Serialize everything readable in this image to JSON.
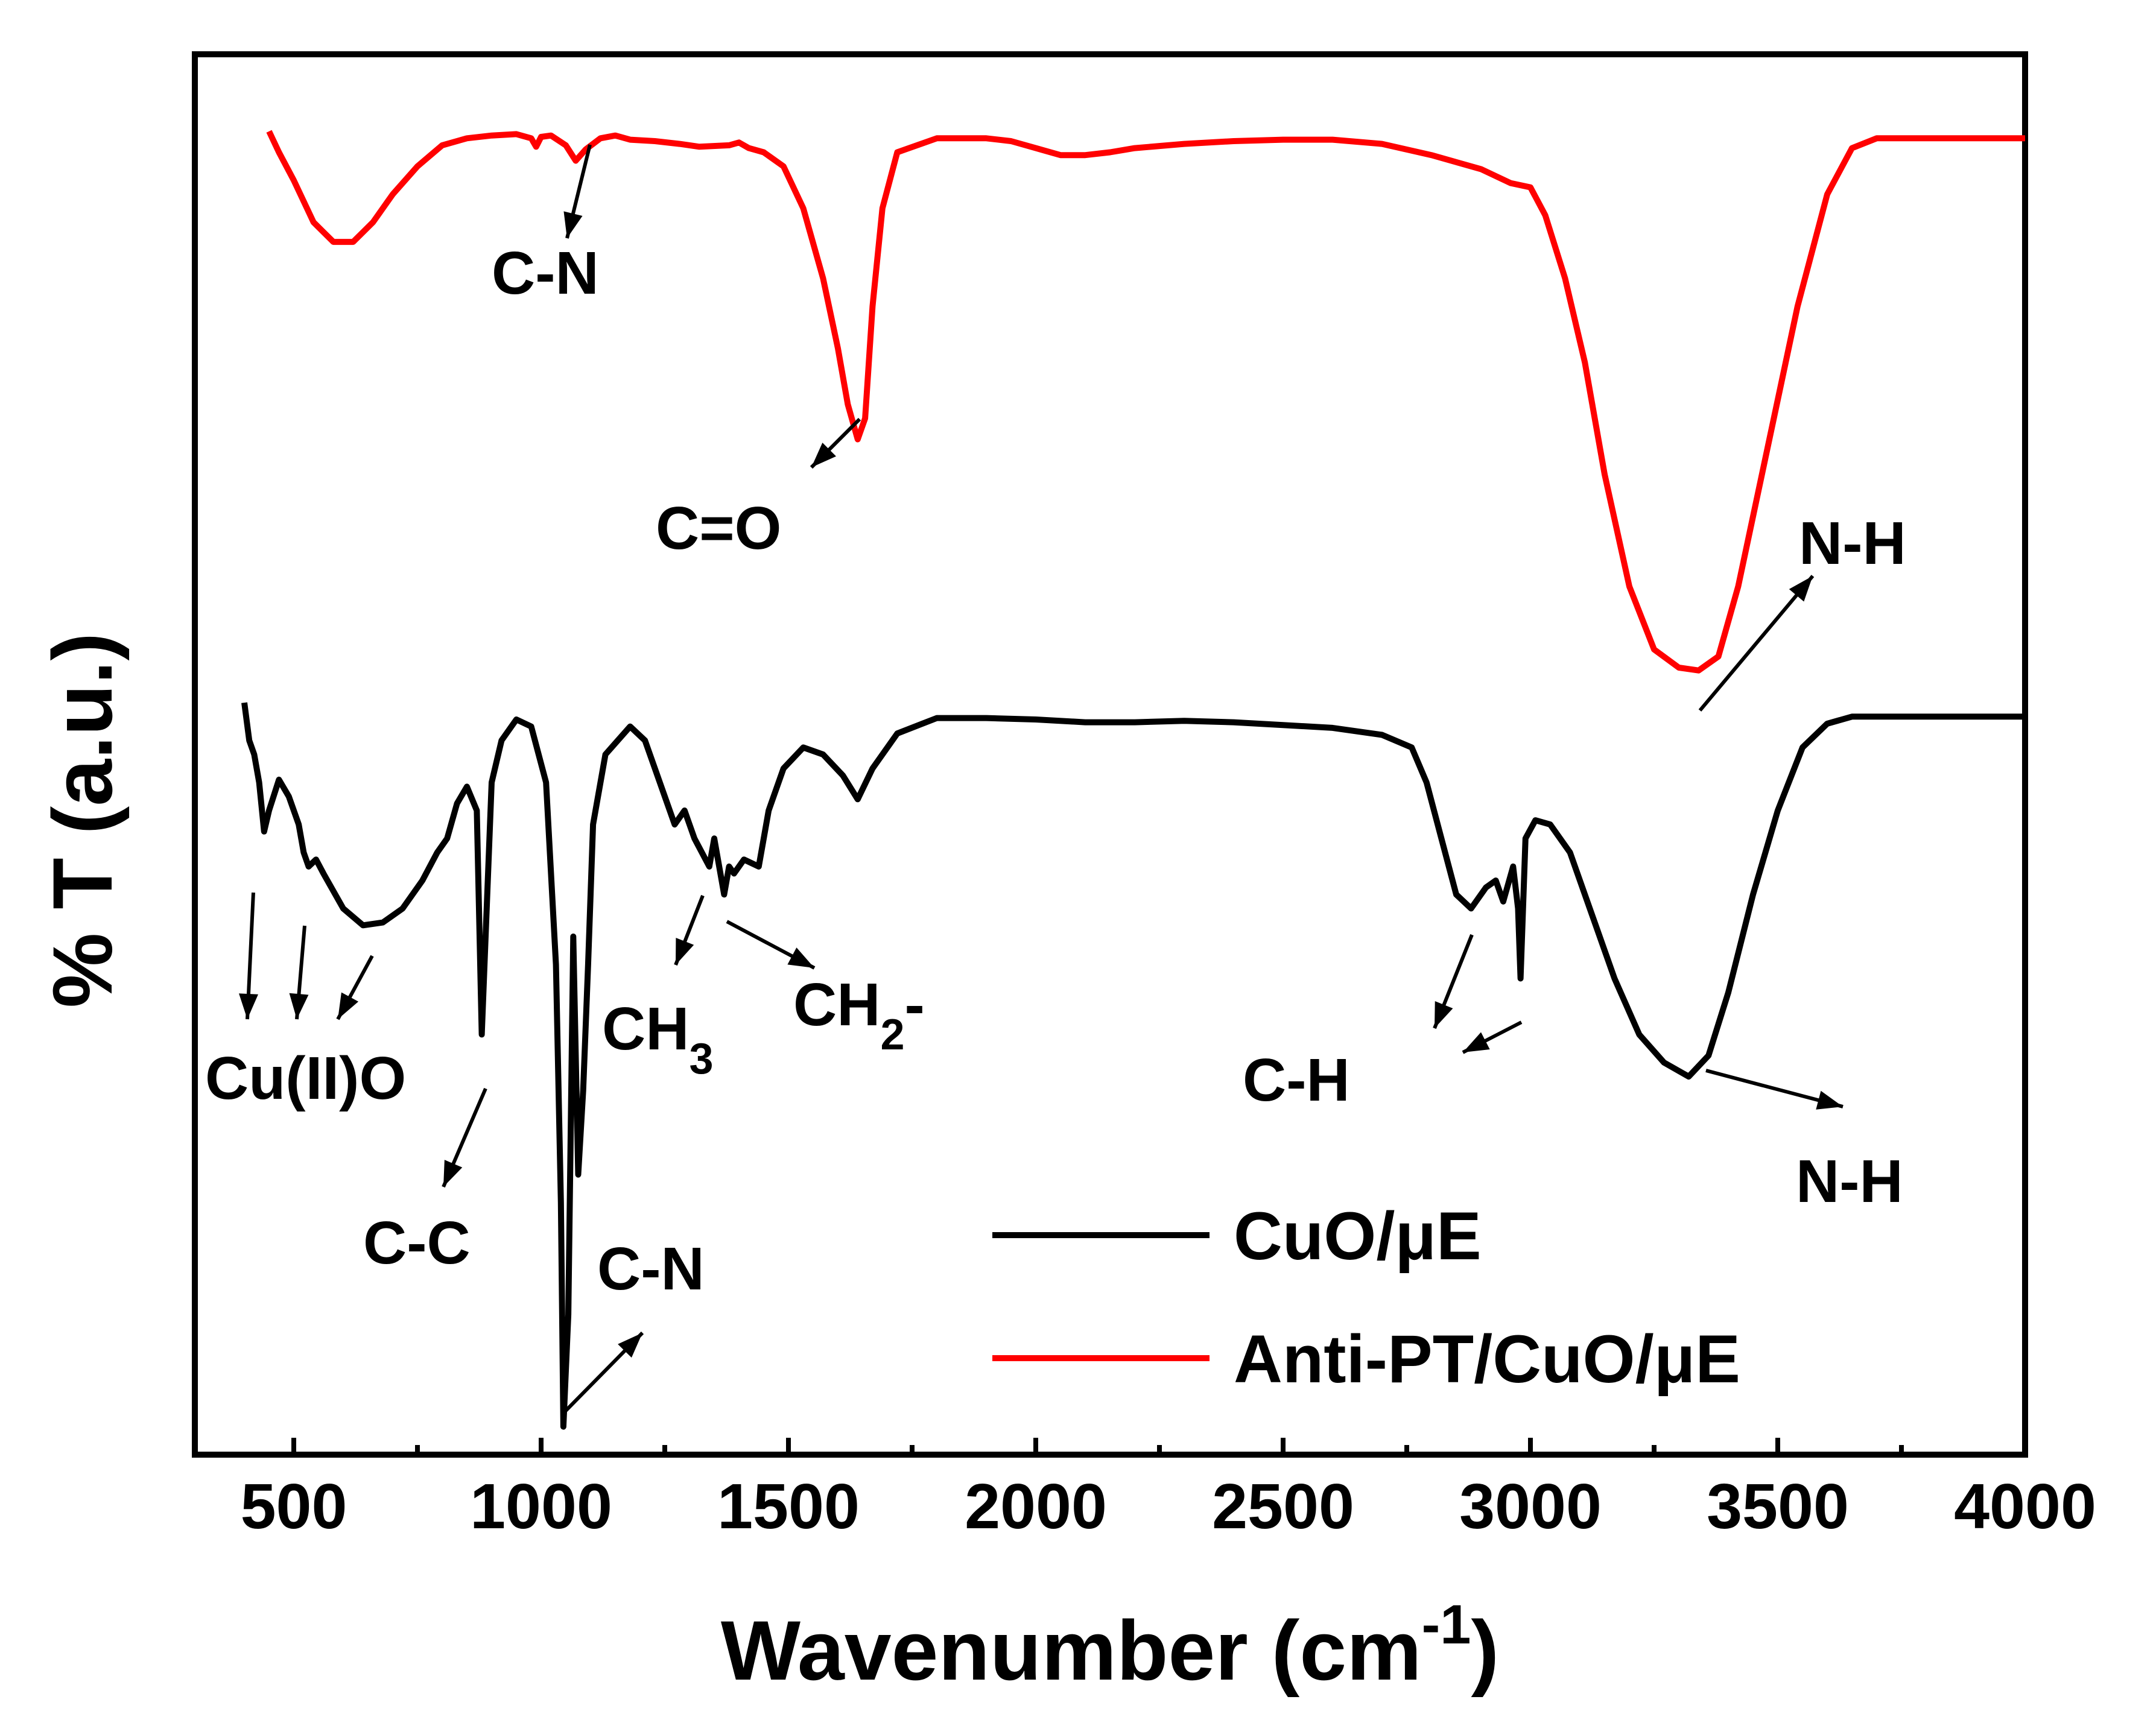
{
  "chart_data": {
    "type": "line",
    "xlabel": "Wavenumber (cm",
    "xlabel_sup": "-1",
    "xlabel_end": ")",
    "ylabel": "% T (a.u.)",
    "xlim": [
      300,
      4000
    ],
    "xticks": [
      500,
      1000,
      1500,
      2000,
      2500,
      3000,
      3500,
      4000
    ],
    "xtick_labels": [
      "500",
      "1000",
      "1500",
      "2000",
      "2500",
      "3000",
      "3500",
      "4000"
    ],
    "yticks_shown": false,
    "ylim": [
      0,
      100
    ],
    "legend_position": "bottom-right",
    "series": [
      {
        "name": "CuO/μE",
        "color": "#000000",
        "points": [
          [
            400,
            53.7
          ],
          [
            410,
            51.0
          ],
          [
            420,
            50.0
          ],
          [
            430,
            48.0
          ],
          [
            440,
            44.5
          ],
          [
            450,
            46.0
          ],
          [
            470,
            48.2
          ],
          [
            490,
            47.0
          ],
          [
            510,
            45.0
          ],
          [
            520,
            43.0
          ],
          [
            530,
            42.0
          ],
          [
            545,
            42.5
          ],
          [
            560,
            41.5
          ],
          [
            600,
            39.0
          ],
          [
            640,
            37.8
          ],
          [
            680,
            38.0
          ],
          [
            720,
            39.0
          ],
          [
            760,
            41.0
          ],
          [
            790,
            43.0
          ],
          [
            810,
            44.0
          ],
          [
            830,
            46.5
          ],
          [
            850,
            47.7
          ],
          [
            870,
            46.0
          ],
          [
            880,
            30.0
          ],
          [
            890,
            39.0
          ],
          [
            900,
            48.0
          ],
          [
            920,
            51.0
          ],
          [
            950,
            52.5
          ],
          [
            980,
            52.0
          ],
          [
            1010,
            48.0
          ],
          [
            1030,
            35.0
          ],
          [
            1040,
            18.0
          ],
          [
            1045,
            2.0
          ],
          [
            1055,
            10.0
          ],
          [
            1065,
            37.0
          ],
          [
            1075,
            20.0
          ],
          [
            1085,
            26.0
          ],
          [
            1095,
            35.0
          ],
          [
            1105,
            45.0
          ],
          [
            1130,
            50.0
          ],
          [
            1180,
            52.0
          ],
          [
            1210,
            51.0
          ],
          [
            1240,
            48.0
          ],
          [
            1270,
            45.0
          ],
          [
            1290,
            46.0
          ],
          [
            1310,
            44.0
          ],
          [
            1340,
            42.0
          ],
          [
            1350,
            44.0
          ],
          [
            1370,
            40.0
          ],
          [
            1380,
            42.0
          ],
          [
            1390,
            41.5
          ],
          [
            1410,
            42.5
          ],
          [
            1440,
            42.0
          ],
          [
            1460,
            46.0
          ],
          [
            1490,
            49.0
          ],
          [
            1530,
            50.5
          ],
          [
            1570,
            50.0
          ],
          [
            1610,
            48.5
          ],
          [
            1640,
            46.8
          ],
          [
            1670,
            49.0
          ],
          [
            1720,
            51.5
          ],
          [
            1800,
            52.6
          ],
          [
            1900,
            52.6
          ],
          [
            2000,
            52.5
          ],
          [
            2100,
            52.3
          ],
          [
            2200,
            52.3
          ],
          [
            2300,
            52.4
          ],
          [
            2400,
            52.3
          ],
          [
            2500,
            52.1
          ],
          [
            2600,
            51.9
          ],
          [
            2700,
            51.4
          ],
          [
            2760,
            50.5
          ],
          [
            2790,
            48.0
          ],
          [
            2820,
            44.0
          ],
          [
            2850,
            40.0
          ],
          [
            2880,
            39.0
          ],
          [
            2910,
            40.5
          ],
          [
            2930,
            41.0
          ],
          [
            2945,
            39.5
          ],
          [
            2965,
            42.0
          ],
          [
            2975,
            39.0
          ],
          [
            2980,
            34.0
          ],
          [
            2990,
            44.0
          ],
          [
            3010,
            45.3
          ],
          [
            3040,
            45.0
          ],
          [
            3080,
            43.0
          ],
          [
            3120,
            39.0
          ],
          [
            3170,
            34.0
          ],
          [
            3220,
            30.0
          ],
          [
            3270,
            28.0
          ],
          [
            3320,
            27.0
          ],
          [
            3360,
            28.5
          ],
          [
            3400,
            33.0
          ],
          [
            3450,
            40.0
          ],
          [
            3500,
            46.0
          ],
          [
            3550,
            50.5
          ],
          [
            3600,
            52.2
          ],
          [
            3650,
            52.7
          ],
          [
            4000,
            52.7
          ]
        ]
      },
      {
        "name": "Anti-PT/CuO/μE",
        "color": "#ff0000",
        "points": [
          [
            450,
            94.5
          ],
          [
            470,
            93.0
          ],
          [
            500,
            91.0
          ],
          [
            540,
            88.0
          ],
          [
            580,
            86.6
          ],
          [
            620,
            86.6
          ],
          [
            660,
            88.0
          ],
          [
            700,
            90.0
          ],
          [
            750,
            92.0
          ],
          [
            800,
            93.5
          ],
          [
            850,
            94.0
          ],
          [
            900,
            94.2
          ],
          [
            950,
            94.3
          ],
          [
            980,
            94.0
          ],
          [
            990,
            93.4
          ],
          [
            1000,
            94.1
          ],
          [
            1020,
            94.2
          ],
          [
            1050,
            93.5
          ],
          [
            1070,
            92.4
          ],
          [
            1090,
            93.2
          ],
          [
            1120,
            94.0
          ],
          [
            1150,
            94.2
          ],
          [
            1180,
            93.9
          ],
          [
            1230,
            93.8
          ],
          [
            1280,
            93.6
          ],
          [
            1320,
            93.4
          ],
          [
            1380,
            93.5
          ],
          [
            1400,
            93.7
          ],
          [
            1420,
            93.3
          ],
          [
            1450,
            93.0
          ],
          [
            1490,
            92.0
          ],
          [
            1530,
            89.0
          ],
          [
            1570,
            84.0
          ],
          [
            1600,
            79.0
          ],
          [
            1620,
            75.0
          ],
          [
            1640,
            72.5
          ],
          [
            1655,
            74.0
          ],
          [
            1670,
            82.0
          ],
          [
            1690,
            89.0
          ],
          [
            1720,
            93.0
          ],
          [
            1800,
            94.0
          ],
          [
            1900,
            94.0
          ],
          [
            1950,
            93.8
          ],
          [
            2000,
            93.3
          ],
          [
            2050,
            92.8
          ],
          [
            2100,
            92.8
          ],
          [
            2150,
            93.0
          ],
          [
            2200,
            93.3
          ],
          [
            2300,
            93.6
          ],
          [
            2400,
            93.8
          ],
          [
            2500,
            93.9
          ],
          [
            2600,
            93.9
          ],
          [
            2700,
            93.6
          ],
          [
            2800,
            92.8
          ],
          [
            2900,
            91.8
          ],
          [
            2960,
            90.8
          ],
          [
            3000,
            90.5
          ],
          [
            3030,
            88.5
          ],
          [
            3070,
            84.0
          ],
          [
            3110,
            78.0
          ],
          [
            3150,
            70.0
          ],
          [
            3200,
            62.0
          ],
          [
            3250,
            57.5
          ],
          [
            3300,
            56.2
          ],
          [
            3340,
            56.0
          ],
          [
            3380,
            57.0
          ],
          [
            3420,
            62.0
          ],
          [
            3480,
            72.0
          ],
          [
            3540,
            82.0
          ],
          [
            3600,
            90.0
          ],
          [
            3650,
            93.3
          ],
          [
            3700,
            94.0
          ],
          [
            4000,
            94.0
          ]
        ]
      }
    ],
    "annotations": [
      {
        "label": "C-N",
        "series": "Anti-PT/CuO/μE"
      },
      {
        "label": "C=O",
        "series": "Anti-PT/CuO/μE"
      },
      {
        "label": "N-H",
        "series": "Anti-PT/CuO/μE"
      },
      {
        "label": "Cu(II)O",
        "series": "CuO/μE"
      },
      {
        "label": "C-C",
        "series": "CuO/μE"
      },
      {
        "label": "C-N",
        "series": "CuO/μE"
      },
      {
        "label": "CH",
        "sub": "3",
        "series": "CuO/μE"
      },
      {
        "label": "CH",
        "sub": "2",
        "tail": "-",
        "series": "CuO/μE"
      },
      {
        "label": "C-H",
        "series": "CuO/μE"
      },
      {
        "label": "N-H",
        "series": "CuO/μE"
      }
    ]
  }
}
